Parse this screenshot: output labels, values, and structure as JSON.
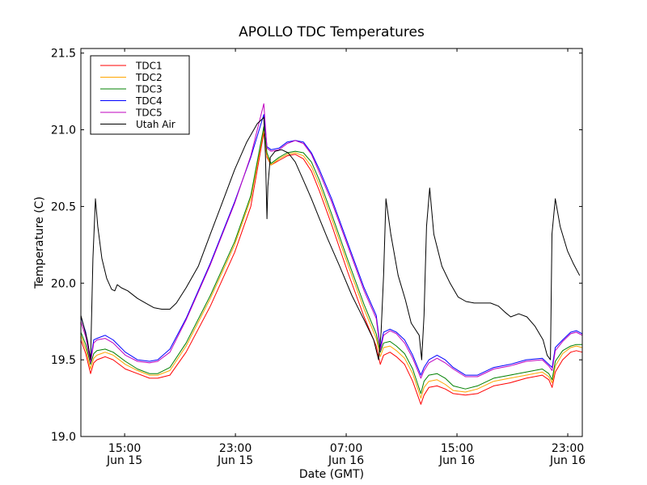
{
  "chart_data": {
    "type": "line",
    "title": "APOLLO TDC Temperatures",
    "xlabel": "Date (GMT)",
    "ylabel": "Temperature (C)",
    "x_units": "hours since 00:00 Jun 15 (GMT)",
    "xlim": [
      11.84,
      48.05
    ],
    "ylim": [
      19.0,
      21.53
    ],
    "grid": false,
    "legend_position": "top-left",
    "xticks": [
      {
        "value": 15,
        "label1": "15:00",
        "label2": "Jun 15"
      },
      {
        "value": 23,
        "label1": "23:00",
        "label2": "Jun 15"
      },
      {
        "value": 31,
        "label1": "07:00",
        "label2": "Jun 16"
      },
      {
        "value": 39,
        "label1": "15:00",
        "label2": "Jun 16"
      },
      {
        "value": 47,
        "label1": "23:00",
        "label2": "Jun 16"
      }
    ],
    "yticks": [
      {
        "value": 19.0,
        "label": "19.0"
      },
      {
        "value": 19.5,
        "label": "19.5"
      },
      {
        "value": 20.0,
        "label": "20.0"
      },
      {
        "value": 20.5,
        "label": "20.5"
      },
      {
        "value": 21.0,
        "label": "21.0"
      },
      {
        "value": 21.5,
        "label": "21.5"
      }
    ],
    "x": [
      11.84,
      12.19,
      12.54,
      12.77,
      13.0,
      13.59,
      14.17,
      15.05,
      15.93,
      16.8,
      17.39,
      18.27,
      19.44,
      21.19,
      22.94,
      24.11,
      25.05,
      25.28,
      25.57,
      26.15,
      26.74,
      27.32,
      27.91,
      28.49,
      29.07,
      29.95,
      31.12,
      32.29,
      33.17,
      33.46,
      33.7,
      34.16,
      34.63,
      35.22,
      35.8,
      36.39,
      36.62,
      36.97,
      37.56,
      38.15,
      38.73,
      39.61,
      40.48,
      41.65,
      42.82,
      44.0,
      45.16,
      45.63,
      45.87,
      46.1,
      46.63,
      47.21,
      47.62,
      48.05
    ],
    "series": [
      {
        "name": "TDC1",
        "color": "#ff0000",
        "values": [
          19.63,
          19.54,
          19.41,
          19.48,
          19.5,
          19.52,
          19.5,
          19.44,
          19.41,
          19.38,
          19.38,
          19.4,
          19.55,
          19.85,
          20.2,
          20.5,
          20.98,
          20.82,
          20.77,
          20.8,
          20.83,
          20.84,
          20.81,
          20.73,
          20.6,
          20.38,
          20.07,
          19.78,
          19.59,
          19.47,
          19.53,
          19.55,
          19.52,
          19.47,
          19.36,
          19.21,
          19.27,
          19.32,
          19.33,
          19.31,
          19.28,
          19.27,
          19.28,
          19.33,
          19.35,
          19.38,
          19.4,
          19.37,
          19.32,
          19.42,
          19.5,
          19.55,
          19.56,
          19.55
        ]
      },
      {
        "name": "TDC2",
        "color": "#ffa500",
        "values": [
          19.66,
          19.57,
          19.44,
          19.51,
          19.53,
          19.55,
          19.53,
          19.47,
          19.43,
          19.4,
          19.4,
          19.43,
          19.59,
          19.9,
          20.25,
          20.55,
          21.0,
          20.83,
          20.77,
          20.81,
          20.84,
          20.85,
          20.83,
          20.76,
          20.64,
          20.42,
          20.12,
          19.83,
          19.64,
          19.52,
          19.58,
          19.59,
          19.56,
          19.51,
          19.41,
          19.25,
          19.32,
          19.36,
          19.37,
          19.34,
          19.3,
          19.29,
          19.31,
          19.36,
          19.38,
          19.4,
          19.42,
          19.39,
          19.35,
          19.46,
          19.54,
          19.58,
          19.59,
          19.58
        ]
      },
      {
        "name": "TDC3",
        "color": "#008000",
        "values": [
          19.68,
          19.6,
          19.47,
          19.54,
          19.56,
          19.57,
          19.55,
          19.49,
          19.44,
          19.41,
          19.41,
          19.45,
          19.61,
          19.92,
          20.27,
          20.57,
          21.02,
          20.85,
          20.78,
          20.82,
          20.85,
          20.86,
          20.85,
          20.79,
          20.67,
          20.45,
          20.15,
          19.86,
          19.67,
          19.55,
          19.61,
          19.62,
          19.59,
          19.54,
          19.44,
          19.28,
          19.36,
          19.4,
          19.41,
          19.38,
          19.33,
          19.31,
          19.33,
          19.38,
          19.4,
          19.42,
          19.44,
          19.41,
          19.37,
          19.49,
          19.56,
          19.59,
          19.6,
          19.6
        ]
      },
      {
        "name": "TDC4",
        "color": "#0000ff",
        "values": [
          19.78,
          19.68,
          19.5,
          19.63,
          19.64,
          19.66,
          19.63,
          19.55,
          19.5,
          19.49,
          19.5,
          19.57,
          19.77,
          20.13,
          20.53,
          20.82,
          21.1,
          20.89,
          20.87,
          20.88,
          20.92,
          20.93,
          20.92,
          20.85,
          20.74,
          20.55,
          20.26,
          19.97,
          19.79,
          19.58,
          19.68,
          19.7,
          19.68,
          19.63,
          19.53,
          19.4,
          19.45,
          19.5,
          19.53,
          19.5,
          19.45,
          19.4,
          19.4,
          19.45,
          19.47,
          19.5,
          19.51,
          19.47,
          19.45,
          19.58,
          19.63,
          19.68,
          19.69,
          19.67
        ]
      },
      {
        "name": "TDC5",
        "color": "#bf00bf",
        "values": [
          19.75,
          19.65,
          19.48,
          19.61,
          19.63,
          19.64,
          19.61,
          19.53,
          19.49,
          19.48,
          19.49,
          19.55,
          19.76,
          20.12,
          20.52,
          20.83,
          21.17,
          20.88,
          20.86,
          20.87,
          20.91,
          20.93,
          20.91,
          20.84,
          20.72,
          20.53,
          20.24,
          19.95,
          19.77,
          19.56,
          19.66,
          19.69,
          19.67,
          19.61,
          19.51,
          19.38,
          19.43,
          19.48,
          19.51,
          19.48,
          19.44,
          19.39,
          19.39,
          19.44,
          19.46,
          19.49,
          19.5,
          19.46,
          19.43,
          19.56,
          19.62,
          19.67,
          19.68,
          19.66
        ]
      },
      {
        "name": "Utah Air",
        "color": "#000000",
        "x": [
          11.84,
          12.31,
          12.54,
          12.71,
          12.89,
          13.06,
          13.36,
          13.71,
          14.06,
          14.29,
          14.47,
          14.76,
          15.23,
          15.93,
          16.51,
          17.1,
          17.68,
          18.27,
          18.74,
          19.44,
          20.32,
          21.19,
          22.07,
          22.94,
          23.82,
          24.58,
          25.05,
          25.17,
          25.28,
          25.34,
          25.52,
          25.87,
          26.33,
          26.8,
          27.32,
          27.91,
          28.49,
          29.07,
          29.66,
          30.53,
          31.41,
          32.29,
          32.99,
          33.34,
          33.52,
          33.7,
          33.87,
          34.22,
          34.75,
          35.28,
          35.69,
          36.27,
          36.45,
          36.62,
          36.8,
          37.03,
          37.33,
          37.91,
          38.5,
          39.08,
          39.66,
          40.25,
          40.83,
          41.42,
          42.0,
          42.47,
          42.88,
          43.46,
          44.05,
          44.63,
          45.22,
          45.51,
          45.75,
          45.86,
          46.1,
          46.45,
          46.98,
          47.39,
          47.86
        ],
        "values": [
          19.79,
          19.63,
          19.5,
          20.16,
          20.55,
          20.37,
          20.16,
          20.03,
          19.96,
          19.95,
          19.99,
          19.97,
          19.95,
          19.9,
          19.87,
          19.84,
          19.83,
          19.83,
          19.87,
          19.97,
          20.11,
          20.32,
          20.53,
          20.74,
          20.92,
          21.04,
          21.08,
          20.84,
          20.42,
          20.63,
          20.82,
          20.86,
          20.87,
          20.85,
          20.79,
          20.67,
          20.55,
          20.42,
          20.29,
          20.11,
          19.92,
          19.76,
          19.63,
          19.5,
          19.68,
          20.05,
          20.55,
          20.32,
          20.05,
          19.89,
          19.74,
          19.66,
          19.5,
          19.79,
          20.37,
          20.62,
          20.32,
          20.11,
          20.0,
          19.91,
          19.88,
          19.87,
          19.87,
          19.87,
          19.85,
          19.81,
          19.78,
          19.8,
          19.78,
          19.72,
          19.63,
          19.53,
          19.5,
          20.32,
          20.55,
          20.37,
          20.21,
          20.13,
          20.05
        ]
      }
    ]
  }
}
